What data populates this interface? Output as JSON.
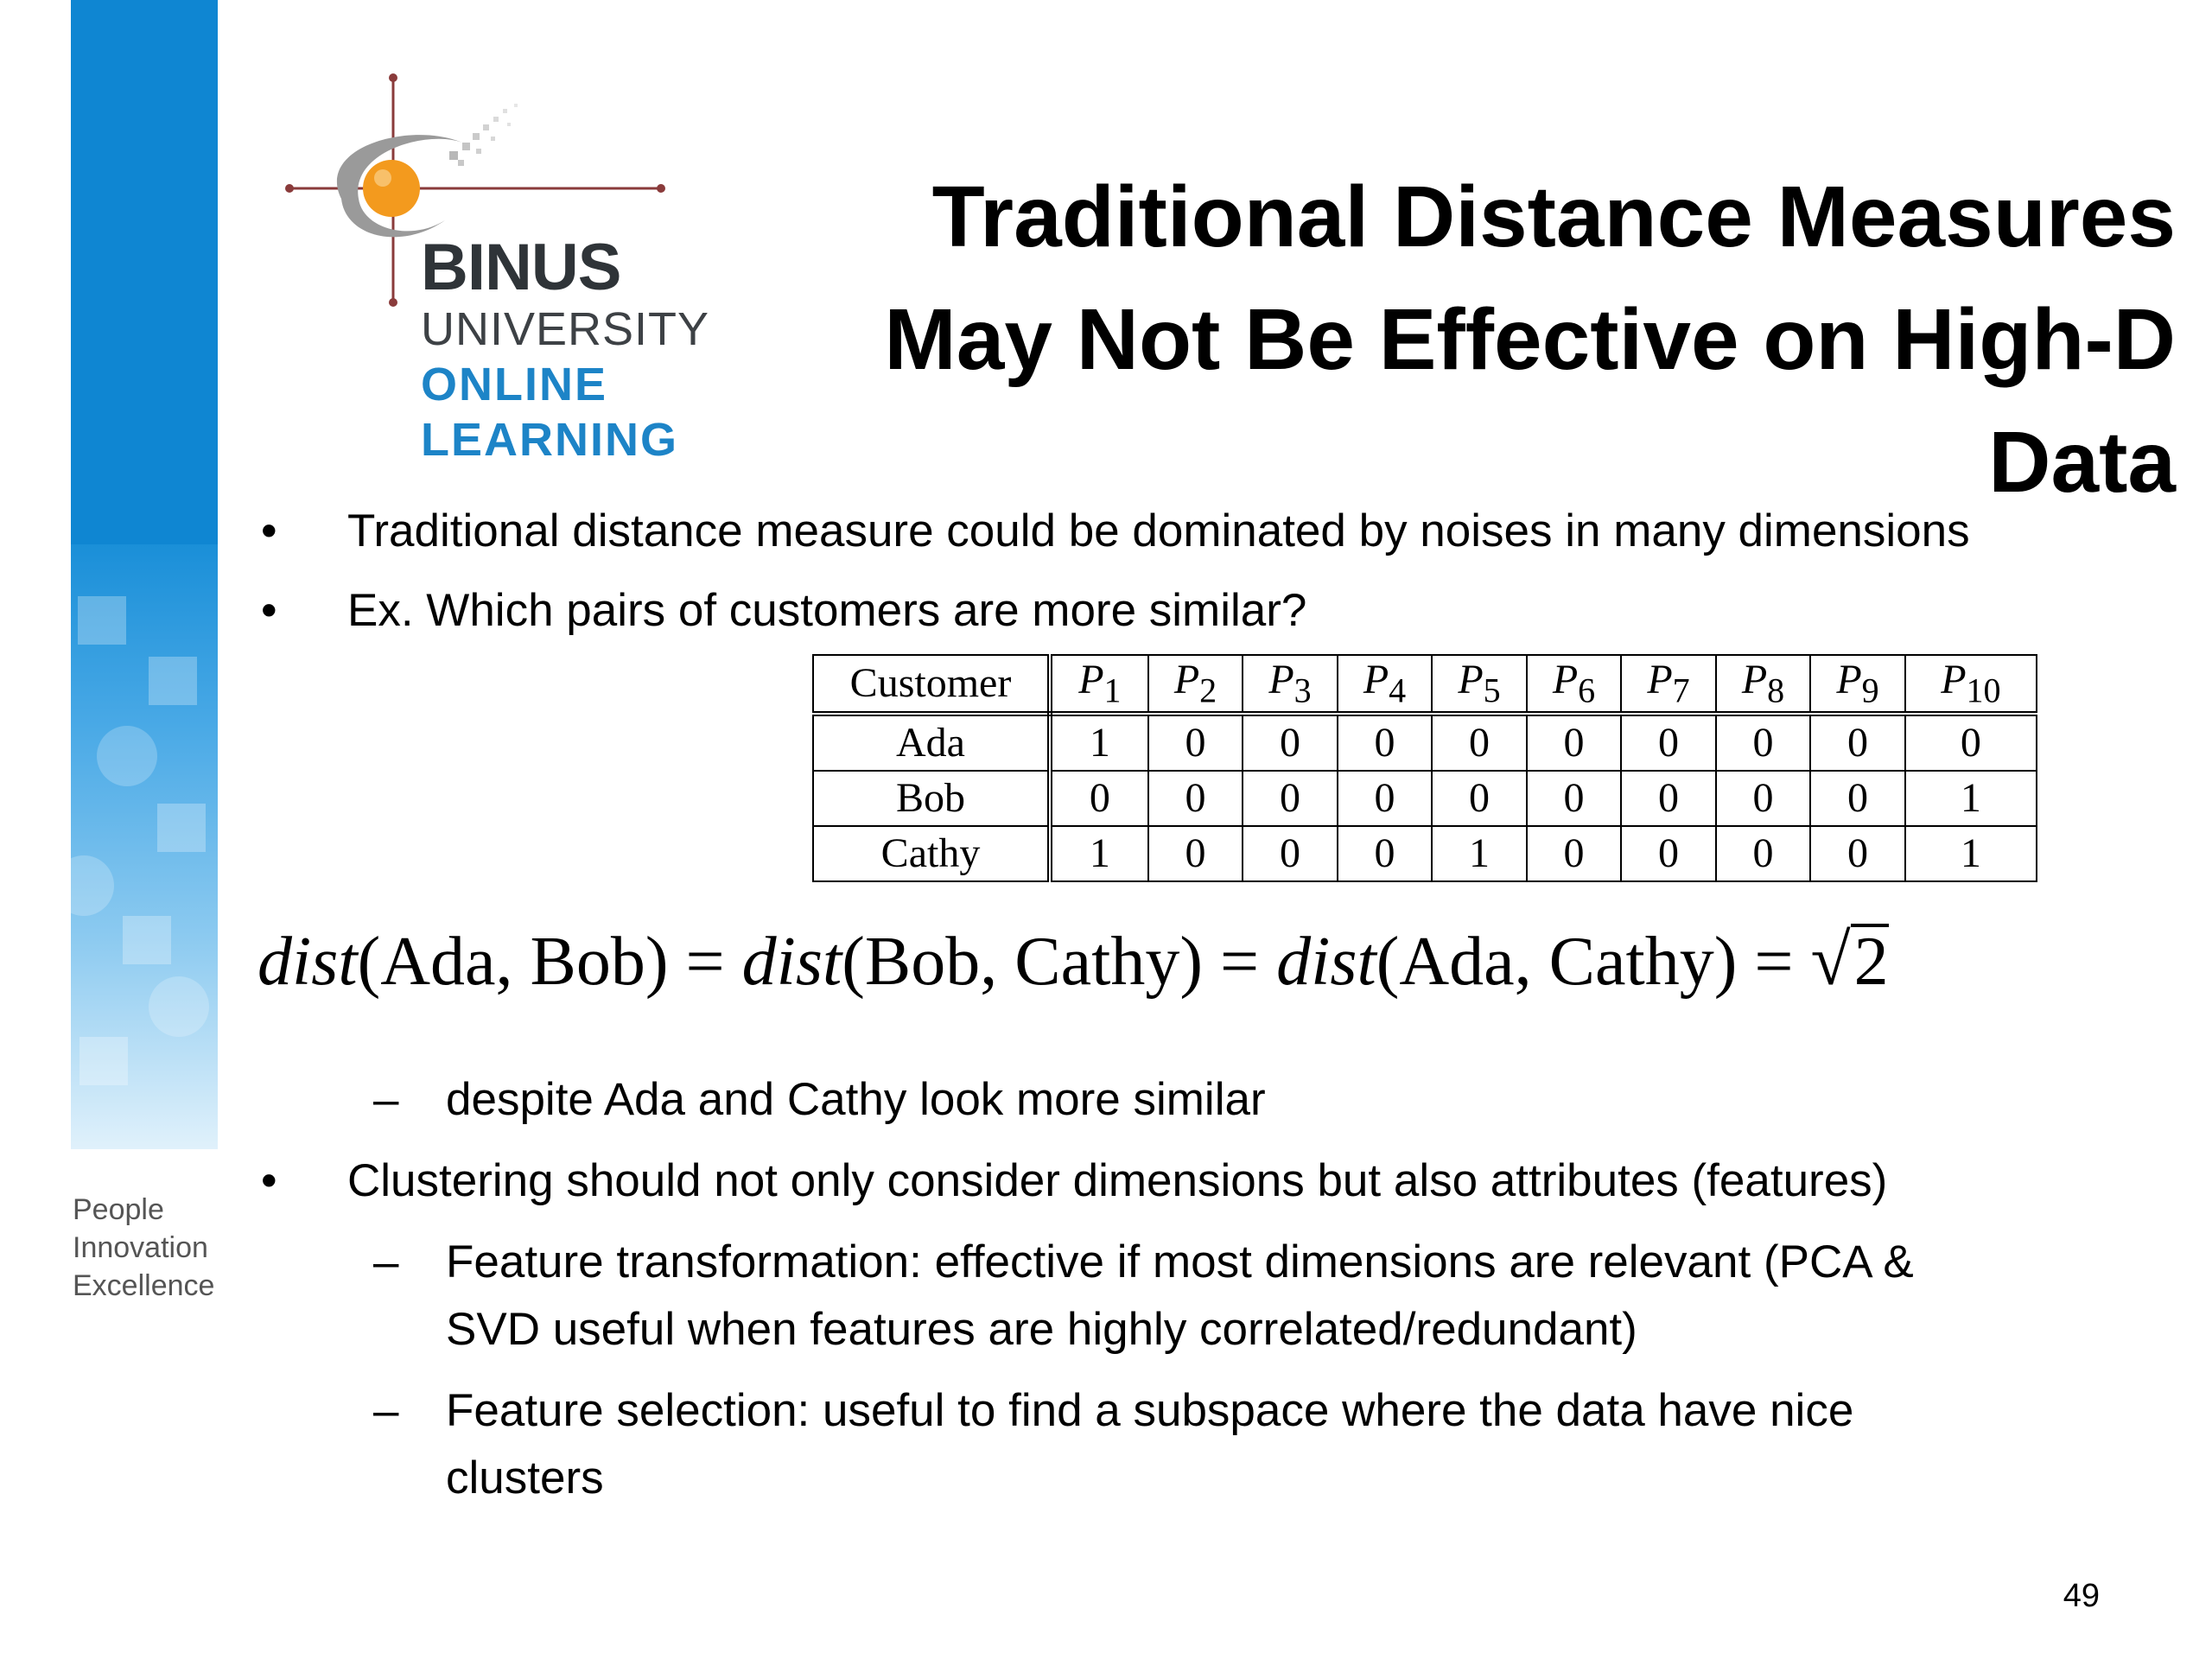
{
  "logo": {
    "line1": "BINUS",
    "line2": "UNIVERSITY",
    "line3": "ONLINE",
    "line4": "LEARNING"
  },
  "tagline": [
    "People",
    "Innovation",
    "Excellence"
  ],
  "title": {
    "lines": [
      "Traditional Distance Measures",
      "May Not Be Effective on High-D",
      "Data"
    ]
  },
  "bullets": {
    "b1": "Traditional distance measure could be dominated by noises in many dimensions",
    "b2": "Ex. Which pairs of customers are more similar?",
    "sub1": "despite Ada and Cathy look more similar",
    "b3": "Clustering should not only consider dimensions but also attributes (features)",
    "sub2_line1": "Feature transformation: effective if most dimensions are relevant (PCA &",
    "sub2_line2": "SVD useful when features are highly correlated/redundant)",
    "sub3_line1": "Feature selection: useful to find a subspace where the data have nice",
    "sub3_line2": "clusters",
    "bullet_symbol": "•",
    "dash_symbol": "–"
  },
  "table": {
    "header_first": "Customer",
    "columns": [
      {
        "letter": "P",
        "sub": "1"
      },
      {
        "letter": "P",
        "sub": "2"
      },
      {
        "letter": "P",
        "sub": "3"
      },
      {
        "letter": "P",
        "sub": "4"
      },
      {
        "letter": "P",
        "sub": "5"
      },
      {
        "letter": "P",
        "sub": "6"
      },
      {
        "letter": "P",
        "sub": "7"
      },
      {
        "letter": "P",
        "sub": "8"
      },
      {
        "letter": "P",
        "sub": "9"
      },
      {
        "letter": "P",
        "sub": "10"
      }
    ],
    "rows": [
      {
        "name": "Ada",
        "values": [
          "1",
          "0",
          "0",
          "0",
          "0",
          "0",
          "0",
          "0",
          "0",
          "0"
        ]
      },
      {
        "name": "Bob",
        "values": [
          "0",
          "0",
          "0",
          "0",
          "0",
          "0",
          "0",
          "0",
          "0",
          "1"
        ]
      },
      {
        "name": "Cathy",
        "values": [
          "1",
          "0",
          "0",
          "0",
          "1",
          "0",
          "0",
          "0",
          "0",
          "1"
        ]
      }
    ]
  },
  "formula": {
    "fn": "dist",
    "args1": "(Ada, Bob)",
    "eq": "=",
    "args2": "(Bob, Cathy)",
    "args3": "(Ada, Cathy)",
    "radical": "√",
    "radicand": "2"
  },
  "page_number": "49"
}
